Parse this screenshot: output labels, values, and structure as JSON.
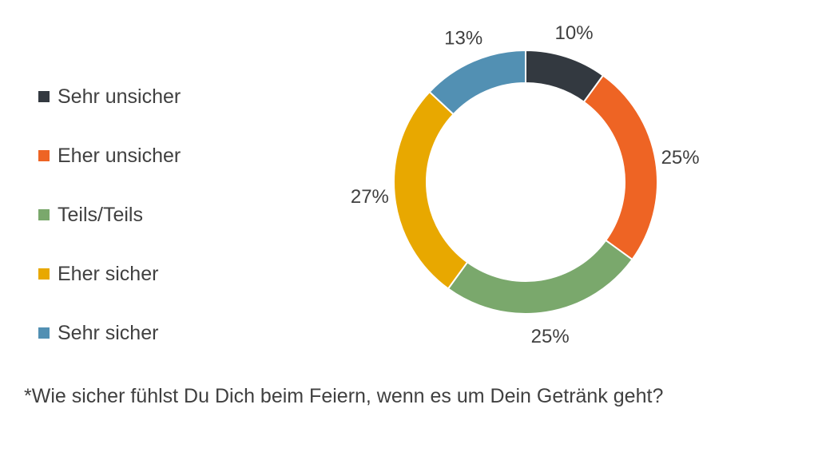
{
  "chart_data": {
    "type": "pie",
    "categories": [
      "Sehr unsicher",
      "Eher unsicher",
      "Teils/Teils",
      "Eher sicher",
      "Sehr sicher"
    ],
    "values": [
      10,
      25,
      25,
      27,
      13
    ],
    "labels": [
      "10%",
      "25%",
      "25%",
      "27%",
      "13%"
    ],
    "colors": [
      "#333940",
      "#ee6424",
      "#7aa86c",
      "#e8a800",
      "#5290b3"
    ],
    "style": "donut",
    "legend_position": "left"
  },
  "footnote": "*Wie sicher fühlst Du Dich beim Feiern, wenn es um Dein Getränk geht?"
}
